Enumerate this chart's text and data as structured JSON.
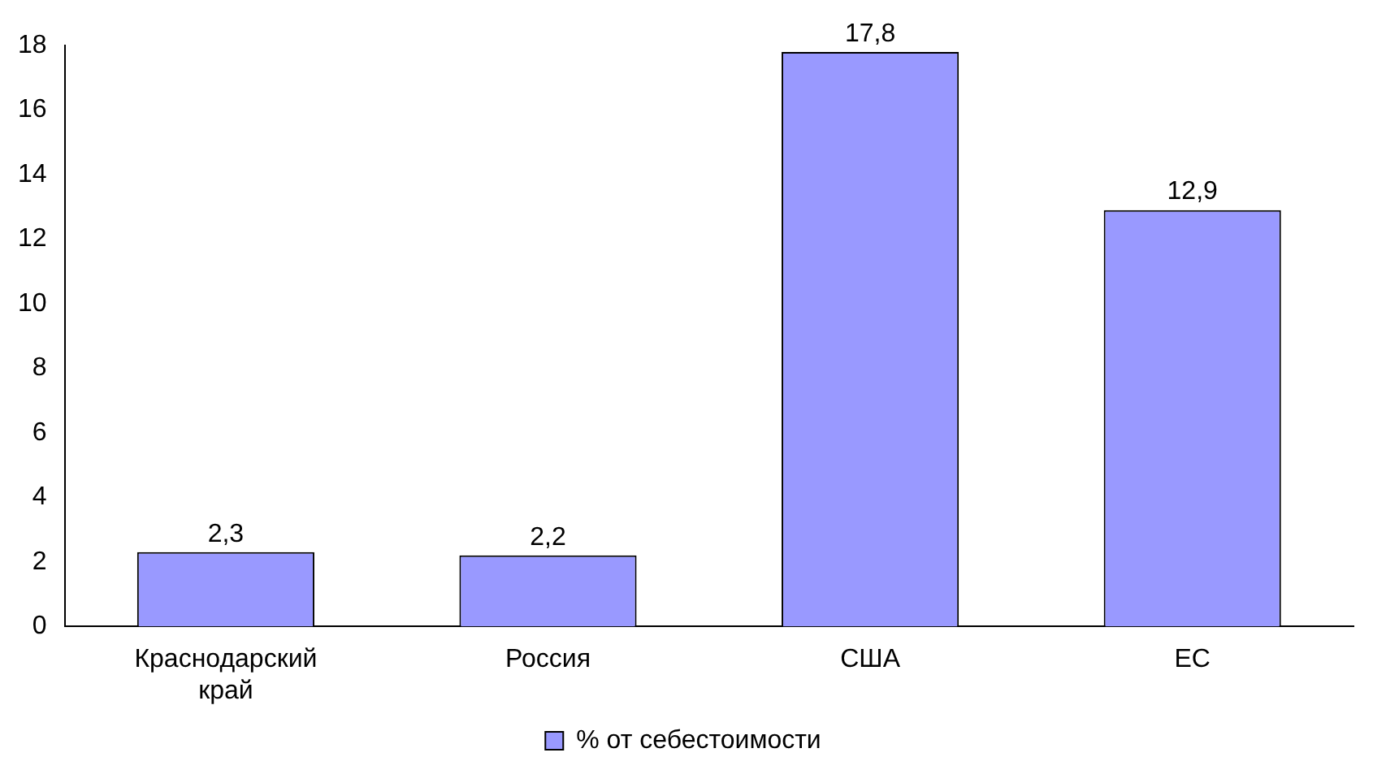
{
  "chart_data": {
    "type": "bar",
    "categories": [
      "Краснодарский край",
      "Россия",
      "США",
      "ЕС"
    ],
    "series": [
      {
        "name": "% от себестоимости",
        "color": "#9999ff",
        "values": [
          2.3,
          2.2,
          17.8,
          12.9
        ],
        "value_labels": [
          "2,3",
          "2,2",
          "17,8",
          "12,9"
        ]
      }
    ],
    "ylim": [
      0,
      18
    ],
    "yticks": [
      0,
      2,
      4,
      6,
      8,
      10,
      12,
      14,
      16,
      18
    ],
    "grid": false,
    "legend": "bottom"
  }
}
